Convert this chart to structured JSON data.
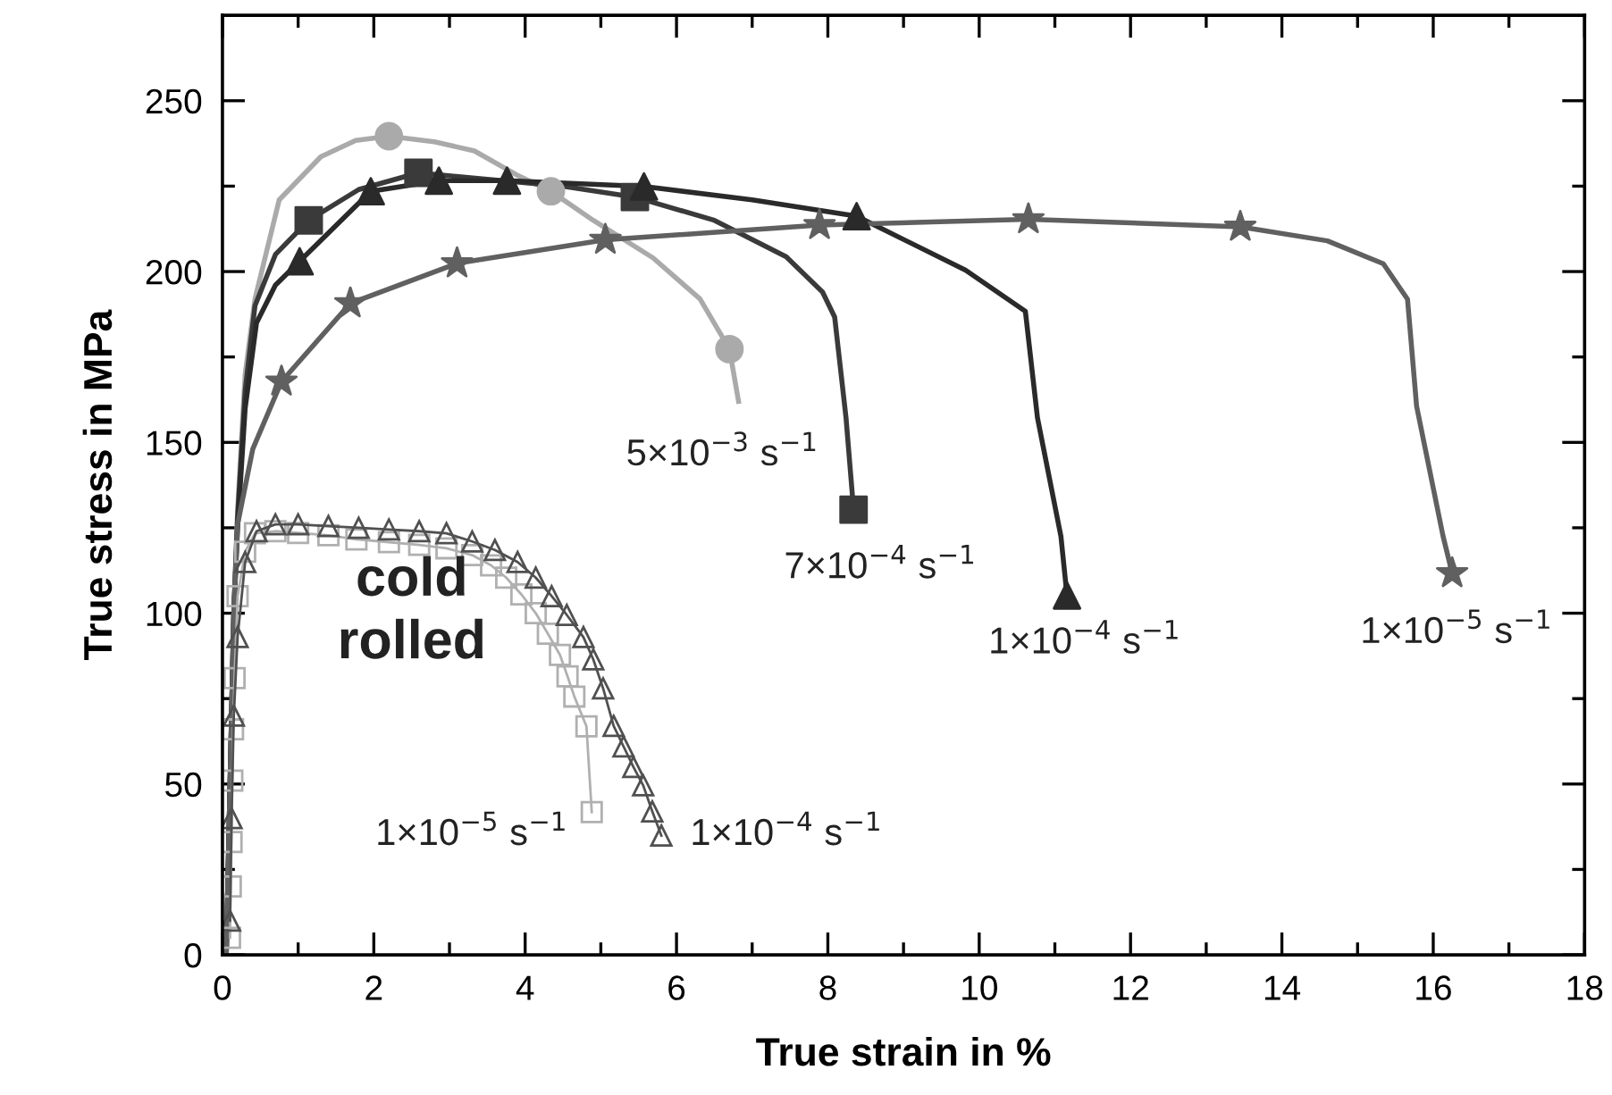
{
  "chart_data": {
    "type": "line",
    "xlabel": "True strain in %",
    "ylabel": "True stress in MPa",
    "xlim": [
      0,
      18
    ],
    "ylim": [
      0,
      275
    ],
    "xticks": [
      0,
      {
        "value": 1,
        "label": null
      },
      2,
      {
        "value": 3,
        "label": null
      },
      4,
      {
        "value": 5,
        "label": null
      },
      6,
      {
        "value": 7,
        "label": null
      },
      8,
      {
        "value": 9,
        "label": null
      },
      10,
      {
        "value": 11,
        "label": null
      },
      12,
      {
        "value": 13,
        "label": null
      },
      14,
      {
        "value": 15,
        "label": null
      },
      16,
      {
        "value": 17,
        "label": null
      },
      18
    ],
    "yticks": [
      0,
      {
        "value": 25,
        "label": null
      },
      50,
      {
        "value": 75,
        "label": null
      },
      100,
      {
        "value": 125,
        "label": null
      },
      150,
      {
        "value": 175,
        "label": null
      },
      200,
      {
        "value": 225,
        "label": null
      },
      250
    ],
    "grid": false,
    "series": [
      {
        "color": "#aaaaaa",
        "marker": "none",
        "x": [
          0.05,
          0.15,
          0.2,
          0.3,
          0.43,
          0.75,
          1.3,
          1.76,
          2.2,
          2.8,
          3.33,
          3.88,
          4.34,
          4.9,
          5.69,
          6.31,
          6.7,
          6.82
        ],
        "values": [
          0,
          100,
          130,
          170,
          192,
          221,
          233.6,
          238.4,
          239.6,
          238,
          235.3,
          228.4,
          223.5,
          215,
          204,
          192,
          177.3,
          162
        ]
      },
      {
        "type": "scatter",
        "color": "#aaaaaa",
        "marker": "circle",
        "x": [
          2.2,
          4.34,
          6.7
        ],
        "values": [
          239.6,
          223.5,
          177.3
        ]
      },
      {
        "color": "#3a3a3a",
        "marker": "none",
        "x": [
          0.05,
          0.15,
          0.2,
          0.3,
          0.43,
          0.7,
          1.14,
          1.8,
          2.59,
          3.5,
          4.5,
          5.45,
          6.5,
          7.45,
          7.93,
          8.09,
          8.24,
          8.34
        ],
        "values": [
          0,
          100,
          128,
          165,
          190,
          205,
          215,
          224,
          228.9,
          227,
          225,
          221.8,
          215,
          204.3,
          194,
          186.7,
          157.2,
          130.3
        ]
      },
      {
        "type": "scatter",
        "color": "#3a3a3a",
        "marker": "square",
        "x": [
          1.14,
          2.59,
          5.45,
          8.34
        ],
        "values": [
          215,
          228.9,
          221.8,
          130.3
        ]
      },
      {
        "color": "#2a2a2a",
        "marker": "none",
        "x": [
          0.05,
          0.15,
          0.2,
          0.3,
          0.45,
          0.7,
          1.02,
          1.96,
          2.86,
          3.76,
          5.57,
          7,
          8.38,
          9.82,
          10.61,
          10.77,
          11.08,
          11.16
        ],
        "values": [
          0,
          100,
          125,
          160,
          185,
          196,
          203,
          223.5,
          226.6,
          226.6,
          224.9,
          221,
          216.2,
          200.4,
          188.4,
          157.2,
          122.5,
          105.2
        ]
      },
      {
        "type": "scatter",
        "color": "#2a2a2a",
        "marker": "triangle",
        "x": [
          1.02,
          1.96,
          2.86,
          3.76,
          5.57,
          8.38,
          11.16
        ],
        "values": [
          203,
          223.5,
          226.6,
          226.6,
          224.9,
          216.2,
          105.2
        ]
      },
      {
        "color": "#606060",
        "marker": "none",
        "x": [
          0.05,
          0.15,
          0.2,
          0.4,
          0.78,
          1.69,
          3.1,
          5.06,
          7.89,
          10.65,
          13.45,
          14.6,
          15.34,
          15.66,
          15.78,
          16.13,
          16.25
        ],
        "values": [
          0,
          100,
          126,
          148,
          167.8,
          190.7,
          202.4,
          209.3,
          213.6,
          215.3,
          213.1,
          209,
          202.3,
          191.9,
          160.6,
          122.5,
          111.7
        ]
      },
      {
        "type": "scatter",
        "color": "#606060",
        "marker": "star",
        "x": [
          0.78,
          1.69,
          3.1,
          5.06,
          7.89,
          10.65,
          13.45,
          16.25
        ],
        "values": [
          167.8,
          190.7,
          202.4,
          209.3,
          213.6,
          215.3,
          213.1,
          111.7
        ]
      },
      {
        "color": "#b0b0b0",
        "marker": "square",
        "x": [
          0.1,
          0.11,
          0.12,
          0.13,
          0.14,
          0.16,
          0.2,
          0.3,
          0.43,
          0.7,
          1.0,
          1.4,
          1.77,
          2.2,
          2.6,
          2.96,
          3.3,
          3.55,
          3.75,
          3.95,
          4.14,
          4.3,
          4.46,
          4.56,
          4.65,
          4.81,
          4.88
        ],
        "values": [
          5,
          20,
          33,
          51,
          66,
          81,
          105,
          118,
          123.4,
          124,
          123.5,
          122.8,
          121.6,
          120.8,
          120,
          119,
          117,
          114,
          110.4,
          105.5,
          100,
          94,
          87.8,
          81.5,
          75.6,
          66.9,
          41.8
        ]
      },
      {
        "color": "#505050",
        "marker": "triangle",
        "x": [
          0.1,
          0.12,
          0.15,
          0.2,
          0.3,
          0.45,
          0.7,
          1.0,
          1.4,
          1.8,
          2.2,
          2.6,
          2.96,
          3.3,
          3.6,
          3.9,
          4.14,
          4.35,
          4.55,
          4.77,
          4.9,
          5.03,
          5.17,
          5.3,
          5.43,
          5.56,
          5.68,
          5.8
        ],
        "values": [
          10,
          40,
          70,
          93,
          115,
          124,
          126,
          126,
          125.5,
          125,
          124.5,
          124,
          123.4,
          121,
          118.5,
          115,
          110.4,
          105,
          99.5,
          93,
          86.5,
          78,
          67,
          61,
          55,
          49.6,
          42,
          34.9
        ]
      }
    ],
    "annotations": [
      "5×10$^{−3}$ s$^{−1}$",
      "7×10$^{−4}$ s$^{−1}$",
      "1×10$^{−4}$ s$^{−1}$",
      "1×10$^{−5}$ s$^{−1}$",
      "cold\nrolled",
      "1×10$^{−5}$ s$^{−1}$",
      "1×10$^{−4}$ s$^{−1}$"
    ]
  }
}
